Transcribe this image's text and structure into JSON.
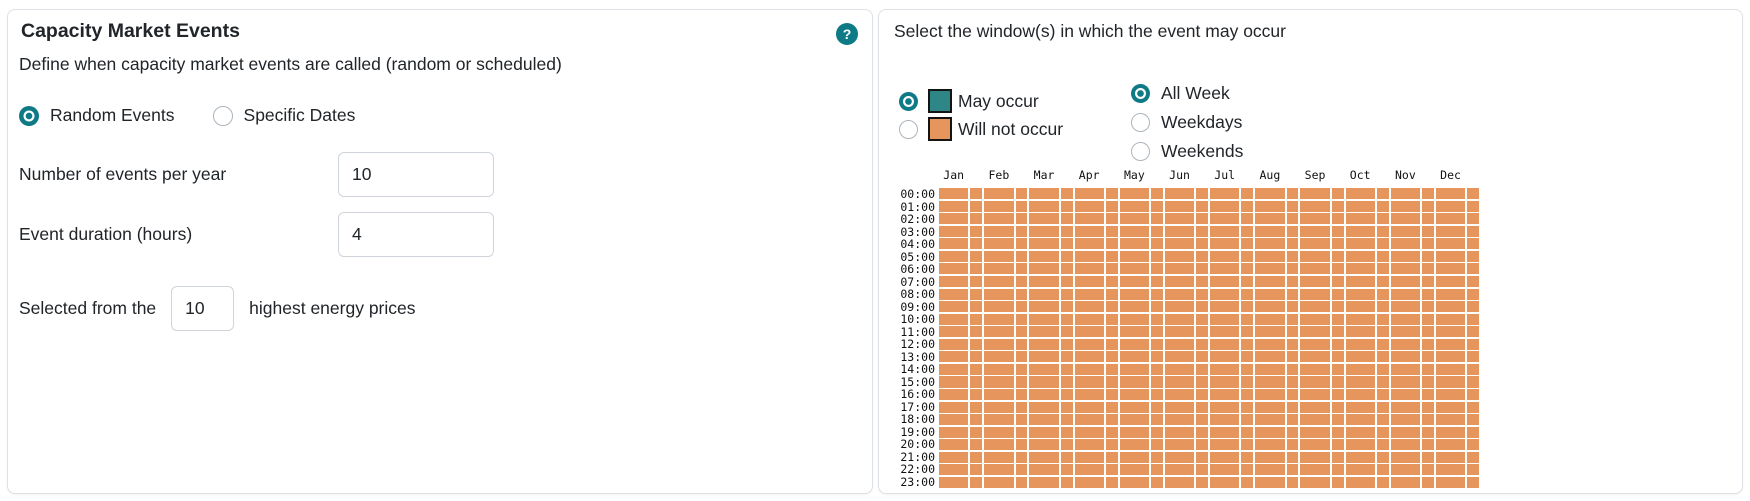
{
  "colors": {
    "accent_teal": "#0d7a86",
    "may_occur": "#2e8786",
    "will_not_occur": "#e6955c",
    "card_border": "#dee2e6",
    "input_border": "#ced4da",
    "text": "#212529"
  },
  "left_panel": {
    "title": "Capacity Market Events",
    "help_label": "?",
    "description": "Define when capacity market events are called (random or scheduled)",
    "event_type": {
      "options": [
        {
          "label": "Random Events",
          "selected": true
        },
        {
          "label": "Specific Dates",
          "selected": false
        }
      ]
    },
    "fields": [
      {
        "label": "Number of events per year",
        "value": "10"
      },
      {
        "label": "Event duration (hours)",
        "value": "4"
      }
    ],
    "selected_from": {
      "prefix": "Selected from the",
      "value": "10",
      "suffix": "highest energy prices"
    }
  },
  "right_panel": {
    "title": "Select the window(s) in which the event may occur",
    "legend": [
      {
        "label": "May occur",
        "state": "may_occur",
        "selected": true
      },
      {
        "label": "Will not occur",
        "state": "will_not_occur",
        "selected": false
      }
    ],
    "window_options": [
      {
        "label": "All Week",
        "selected": true
      },
      {
        "label": "Weekdays",
        "selected": false
      },
      {
        "label": "Weekends",
        "selected": false
      }
    ]
  },
  "chart_data": {
    "type": "heatmap",
    "x_categories": [
      "Jan",
      "Feb",
      "Mar",
      "Apr",
      "May",
      "Jun",
      "Jul",
      "Aug",
      "Sep",
      "Oct",
      "Nov",
      "Dec"
    ],
    "month_subcolumns": [
      {
        "name": "weekdays",
        "weight": 5
      },
      {
        "name": "weekends",
        "weight": 2
      }
    ],
    "y_categories": [
      "00:00",
      "01:00",
      "02:00",
      "03:00",
      "04:00",
      "05:00",
      "06:00",
      "07:00",
      "08:00",
      "09:00",
      "10:00",
      "11:00",
      "12:00",
      "13:00",
      "14:00",
      "15:00",
      "16:00",
      "17:00",
      "18:00",
      "19:00",
      "20:00",
      "21:00",
      "22:00",
      "23:00"
    ],
    "default_state": "will_not_occur",
    "cell_states_note": "every cell in all 24 columns x 24 rows is will_not_occur (orange)",
    "state_colors": {
      "may_occur": "#2e8786",
      "will_not_occur": "#e6955c"
    },
    "grid": {
      "rows": 24,
      "months": 12,
      "subcols_per_month": 2
    },
    "legend_position": "top-left",
    "axes": {
      "x_label": "",
      "y_label": "",
      "grid_lines": "white gaps between cells"
    }
  }
}
